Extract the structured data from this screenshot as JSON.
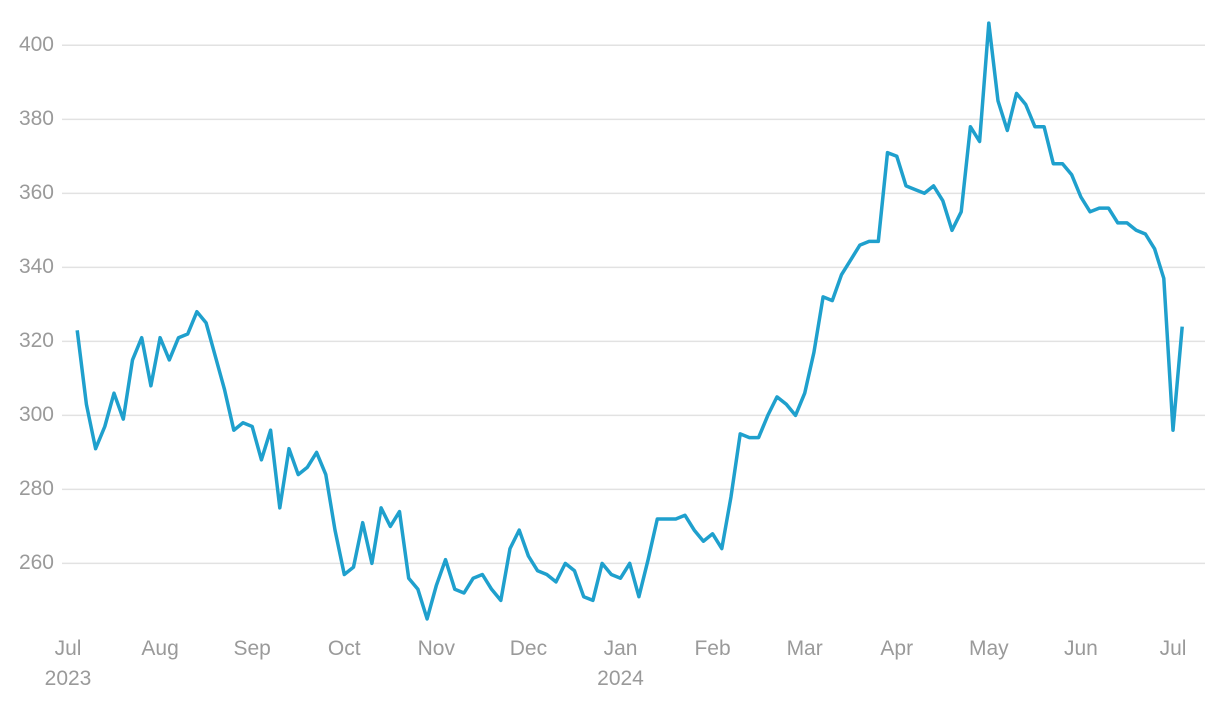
{
  "chart_data": {
    "type": "line",
    "categories": [
      "Jul\n2023",
      null,
      null,
      null,
      null,
      null,
      null,
      null,
      null,
      null,
      "Aug",
      null,
      null,
      null,
      null,
      null,
      null,
      null,
      null,
      null,
      "Sep",
      null,
      null,
      null,
      null,
      null,
      null,
      null,
      null,
      null,
      "Oct",
      null,
      null,
      null,
      null,
      null,
      null,
      null,
      null,
      null,
      "Nov",
      null,
      null,
      null,
      null,
      null,
      null,
      null,
      null,
      null,
      "Dec",
      null,
      null,
      null,
      null,
      null,
      null,
      null,
      null,
      null,
      "Jan\n2024",
      null,
      null,
      null,
      null,
      null,
      null,
      null,
      null,
      null,
      "Feb",
      null,
      null,
      null,
      null,
      null,
      null,
      null,
      null,
      null,
      "Mar",
      null,
      null,
      null,
      null,
      null,
      null,
      null,
      null,
      null,
      "Apr",
      null,
      null,
      null,
      null,
      null,
      null,
      null,
      null,
      null,
      "May",
      null,
      null,
      null,
      null,
      null,
      null,
      null,
      null,
      null,
      "Jun",
      null,
      null,
      null,
      null,
      null,
      null,
      null,
      null,
      null,
      "Jul",
      null
    ],
    "series": [
      {
        "color": "#1fa0cd",
        "values": [
          null,
          323,
          303,
          291,
          297,
          306,
          299,
          315,
          321,
          308,
          321,
          315,
          321,
          322,
          328,
          325,
          316,
          307,
          296,
          298,
          297,
          288,
          296,
          275,
          291,
          284,
          286,
          290,
          284,
          269,
          257,
          259,
          271,
          260,
          275,
          270,
          274,
          256,
          253,
          245,
          254,
          261,
          253,
          252,
          256,
          257,
          253,
          250,
          264,
          269,
          262,
          258,
          257,
          255,
          260,
          258,
          251,
          250,
          260,
          257,
          256,
          260,
          251,
          261,
          272,
          272,
          272,
          273,
          269,
          266,
          268,
          264,
          278,
          295,
          294,
          294,
          300,
          305,
          303,
          300,
          306,
          317,
          332,
          331,
          338,
          342,
          346,
          347,
          347,
          371,
          370,
          362,
          361,
          360,
          362,
          358,
          350,
          355,
          378,
          374,
          406,
          385,
          377,
          387,
          384,
          378,
          378,
          368,
          368,
          365,
          359,
          355,
          356,
          356,
          352,
          352,
          350,
          349,
          345,
          337,
          296,
          324
        ]
      }
    ],
    "ylim": [
      242,
      409
    ],
    "yticks": [
      260,
      280,
      300,
      320,
      340,
      360,
      380,
      400
    ],
    "grid": true
  }
}
